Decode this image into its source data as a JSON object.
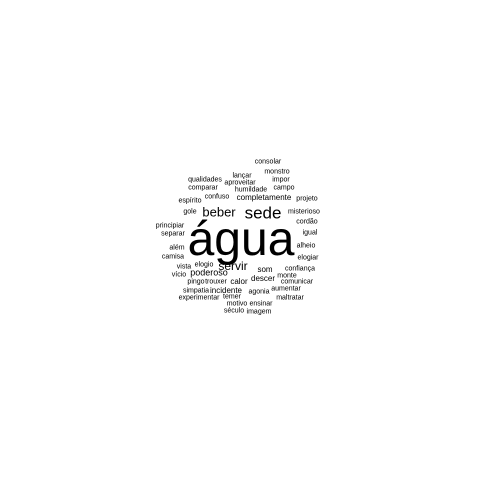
{
  "word_cloud": {
    "text_color": "#000000",
    "background": "#ffffff",
    "words": [
      {
        "text": "água",
        "weight": 48
      },
      {
        "text": "sede",
        "weight": 17
      },
      {
        "text": "beber",
        "weight": 13
      },
      {
        "text": "servir",
        "weight": 12
      },
      {
        "text": "poderoso",
        "weight": 9
      },
      {
        "text": "completamente",
        "weight": 8
      },
      {
        "text": "descer",
        "weight": 8
      },
      {
        "text": "calor",
        "weight": 8
      },
      {
        "text": "incidente",
        "weight": 8
      },
      {
        "text": "som",
        "weight": 8
      },
      {
        "text": "aproveitar",
        "weight": 7
      },
      {
        "text": "humildade",
        "weight": 7
      },
      {
        "text": "consolar",
        "weight": 7
      },
      {
        "text": "monstro",
        "weight": 7
      },
      {
        "text": "lançar",
        "weight": 7
      },
      {
        "text": "impor",
        "weight": 7
      },
      {
        "text": "qualidades",
        "weight": 7
      },
      {
        "text": "comparar",
        "weight": 7
      },
      {
        "text": "campo",
        "weight": 7
      },
      {
        "text": "confuso",
        "weight": 7
      },
      {
        "text": "espírito",
        "weight": 7
      },
      {
        "text": "projeto",
        "weight": 7
      },
      {
        "text": "gole",
        "weight": 7
      },
      {
        "text": "misterioso",
        "weight": 7
      },
      {
        "text": "cordão",
        "weight": 7
      },
      {
        "text": "principiar",
        "weight": 7
      },
      {
        "text": "separar",
        "weight": 7
      },
      {
        "text": "igual",
        "weight": 7
      },
      {
        "text": "além",
        "weight": 7
      },
      {
        "text": "alheio",
        "weight": 7
      },
      {
        "text": "camisa",
        "weight": 7
      },
      {
        "text": "elogiar",
        "weight": 7
      },
      {
        "text": "vista",
        "weight": 7
      },
      {
        "text": "elogio",
        "weight": 7
      },
      {
        "text": "vício",
        "weight": 7
      },
      {
        "text": "confiança",
        "weight": 7
      },
      {
        "text": "pingo",
        "weight": 7
      },
      {
        "text": "trouxer",
        "weight": 7
      },
      {
        "text": "monte",
        "weight": 7
      },
      {
        "text": "comunicar",
        "weight": 7
      },
      {
        "text": "simpatia",
        "weight": 7
      },
      {
        "text": "agonia",
        "weight": 7
      },
      {
        "text": "aumentar",
        "weight": 7
      },
      {
        "text": "experimentar",
        "weight": 7
      },
      {
        "text": "temer",
        "weight": 7
      },
      {
        "text": "maltratar",
        "weight": 7
      },
      {
        "text": "ensinar",
        "weight": 7
      },
      {
        "text": "motivo",
        "weight": 7
      },
      {
        "text": "século",
        "weight": 7
      },
      {
        "text": "imagem",
        "weight": 7
      }
    ]
  }
}
